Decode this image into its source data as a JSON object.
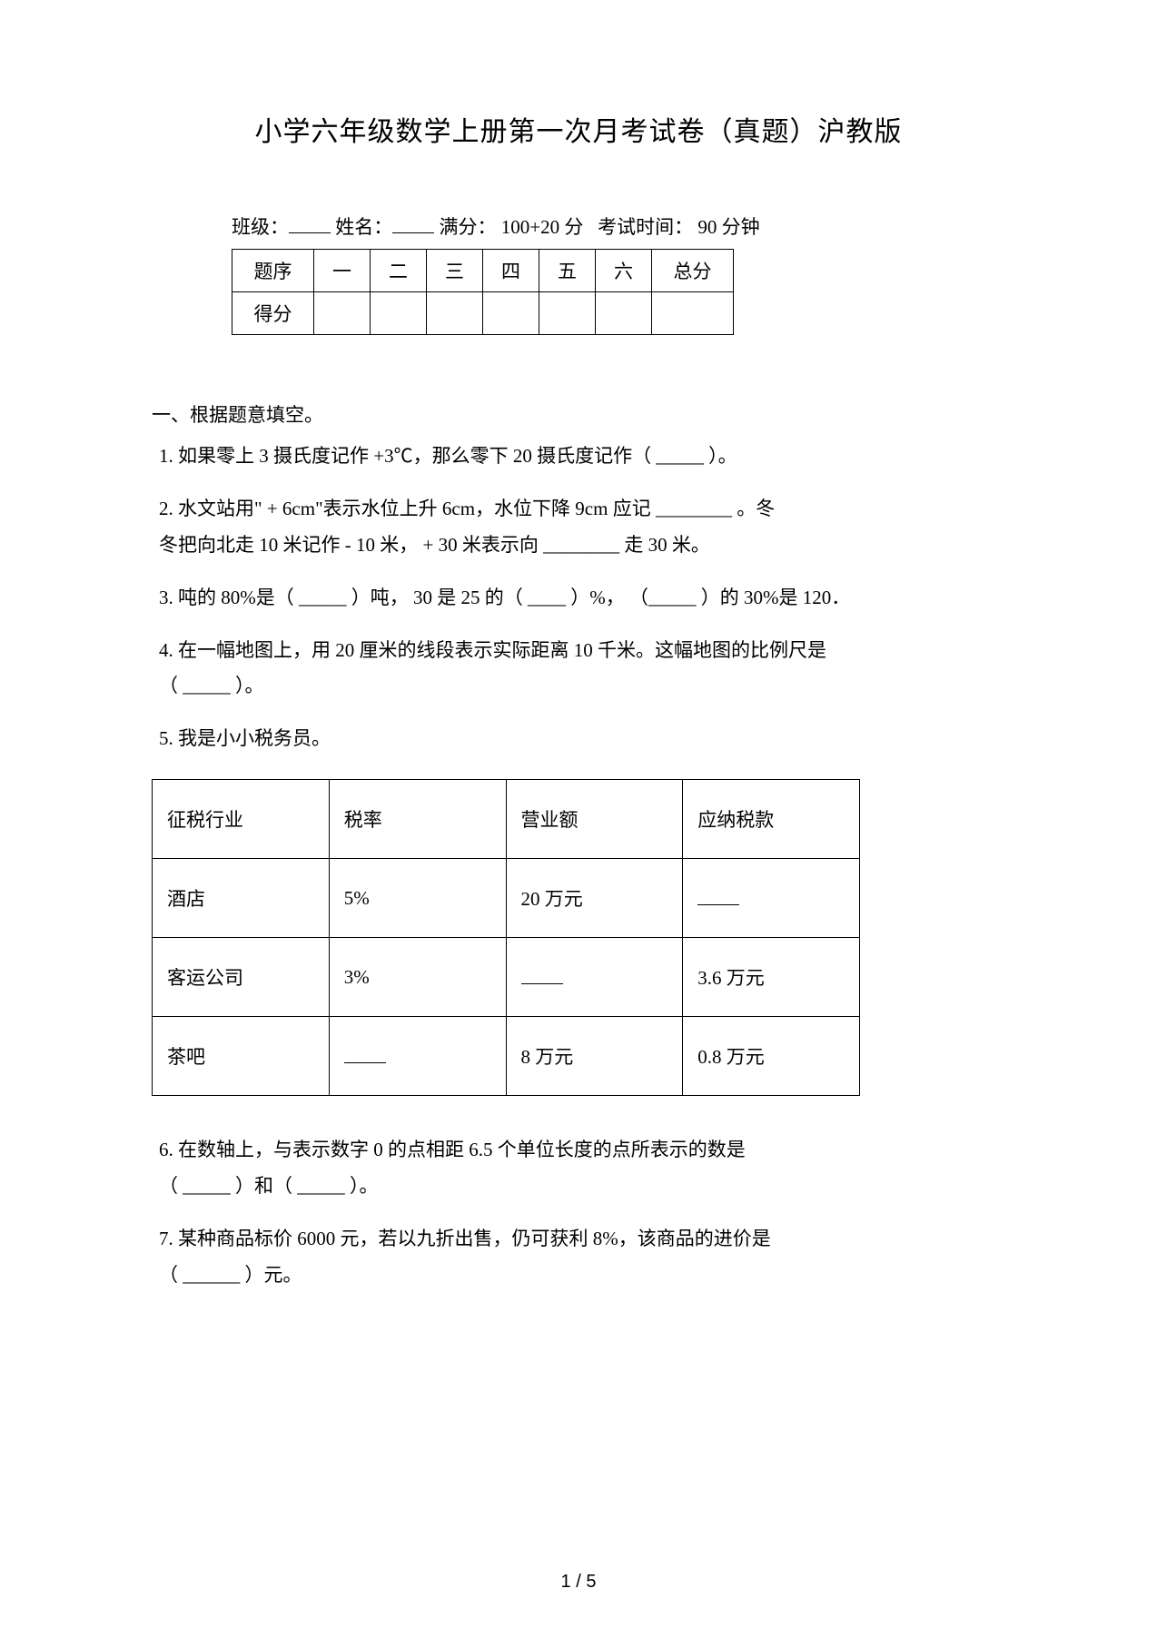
{
  "title": "小学六年级数学上册第一次月考试卷（真题）沪教版",
  "info": {
    "class_label": "班级：",
    "name_label": "姓名：",
    "full_score_label": "满分：",
    "full_score_value": "100+20 分",
    "time_label": "考试时间：",
    "time_value": "90 分钟"
  },
  "score_table": {
    "row1": [
      "题序",
      "一",
      "二",
      "三",
      "四",
      "五",
      "六",
      "总分"
    ],
    "row2_label": "得分"
  },
  "section1_heading": "一、根据题意填空。",
  "q1": "1.  如果零上 3 摄氏度记作 +3℃，那么零下  20 摄氏度记作（ _____ ）。",
  "q2_a": "2.  水文站用\" + 6cm\"表示水位上升 6cm，水位下降 9cm 应记 ________ 。冬",
  "q2_b": "冬把向北走 10 米记作 - 10 米， + 30 米表示向 ________ 走 30 米。",
  "q3": "3.  吨的 80%是（ _____ ）吨， 30 是 25 的（ ____ ）%， （_____ ）的 30%是 120．",
  "q4_a": "4.  在一幅地图上，用 20 厘米的线段表示实际距离 10 千米。这幅地图的比例尺是",
  "q4_b": "（ _____ ）。",
  "q5": "5.  我是小小税务员。",
  "tax_table": {
    "headers": [
      "征税行业",
      "税率",
      "营业额",
      "应纳税款"
    ],
    "rows": [
      [
        "酒店",
        "5%",
        "20 万元",
        ""
      ],
      [
        "客运公司",
        "3%",
        "",
        "3.6 万元"
      ],
      [
        "茶吧",
        "",
        "8 万元",
        "0.8 万元"
      ]
    ]
  },
  "q6_a": "6.  在数轴上，与表示数字 0 的点相距 6.5 个单位长度的点所表示的数是",
  "q6_b": "（ _____ ）和（ _____ ）。",
  "q7_a": "7.  某种商品标价 6000 元，若以九折出售，仍可获利 8%，该商品的进价是",
  "q7_b": "（ ______ ）元。",
  "page_number": "1 / 5"
}
